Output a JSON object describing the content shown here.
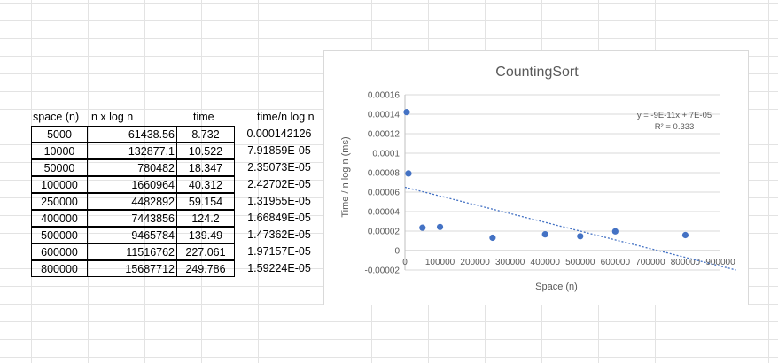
{
  "table": {
    "headers": [
      "space (n)",
      "n x log n",
      "time",
      "time/n log n"
    ],
    "rows": [
      [
        "5000",
        "61438.56",
        "8.732",
        "0.000142126"
      ],
      [
        "10000",
        "132877.1",
        "10.522",
        "7.91859E-05"
      ],
      [
        "50000",
        "780482",
        "18.347",
        "2.35073E-05"
      ],
      [
        "100000",
        "1660964",
        "40.312",
        "2.42702E-05"
      ],
      [
        "250000",
        "4482892",
        "59.154",
        "1.31955E-05"
      ],
      [
        "400000",
        "7443856",
        "124.2",
        "1.66849E-05"
      ],
      [
        "500000",
        "9465784",
        "139.49",
        "1.47362E-05"
      ],
      [
        "600000",
        "11516762",
        "227.061",
        "1.97157E-05"
      ],
      [
        "800000",
        "15687712",
        "249.786",
        "1.59224E-05"
      ]
    ]
  },
  "chart_data": {
    "type": "scatter",
    "title": "CountingSort",
    "xlabel": "Space (n)",
    "ylabel": "Time / n log n (ms)",
    "xlim": [
      0,
      900000
    ],
    "ylim": [
      -2e-05,
      0.00016
    ],
    "x_ticks": [
      "0",
      "100000",
      "200000",
      "300000",
      "400000",
      "500000",
      "600000",
      "700000",
      "800000",
      "900000"
    ],
    "y_ticks": [
      "-0.00002",
      "0",
      "0.00002",
      "0.00004",
      "0.00006",
      "0.00008",
      "0.0001",
      "0.00012",
      "0.00014",
      "0.00016"
    ],
    "grid": true,
    "series": [
      {
        "x": [
          5000,
          10000,
          50000,
          100000,
          250000,
          400000,
          500000,
          600000,
          800000
        ],
        "y": [
          0.000142126,
          7.91859e-05,
          2.35073e-05,
          2.42702e-05,
          1.31955e-05,
          1.66849e-05,
          1.47362e-05,
          1.97157e-05,
          1.59224e-05
        ],
        "color": "#4472c4"
      }
    ],
    "trendline": {
      "type": "linear",
      "slope": -9e-11,
      "intercept": 6.5e-05,
      "equation": "y = -9E-11x + 7E-05",
      "r_squared": "R² = 0.333",
      "color": "#4472c4"
    }
  }
}
